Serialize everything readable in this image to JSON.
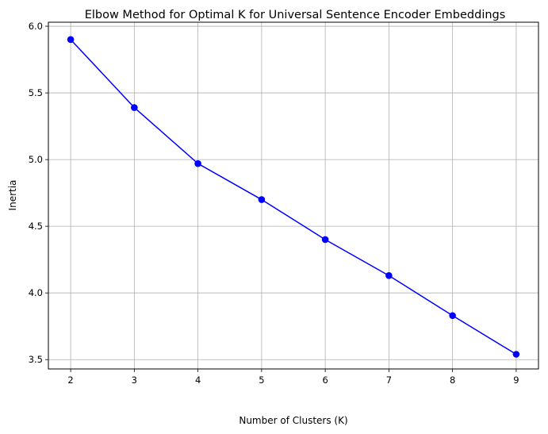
{
  "chart_data": {
    "type": "line",
    "title": "Elbow Method for Optimal K for Universal Sentence Encoder Embeddings",
    "xlabel": "Number of Clusters (K)",
    "ylabel": "Inertia",
    "x": [
      2,
      3,
      4,
      5,
      6,
      7,
      8,
      9
    ],
    "xticks": [
      "2",
      "3",
      "4",
      "5",
      "6",
      "7",
      "8",
      "9"
    ],
    "yticks": [
      "3.5",
      "4.0",
      "4.5",
      "5.0",
      "5.5",
      "6.0"
    ],
    "xlim": [
      1.65,
      9.35
    ],
    "ylim": [
      3.43,
      6.03
    ],
    "grid": true,
    "series": [
      {
        "values": [
          5.9,
          5.39,
          4.97,
          4.7,
          4.4,
          4.13,
          3.83,
          3.54
        ],
        "color": "#0000ff",
        "marker": "circle"
      }
    ]
  }
}
